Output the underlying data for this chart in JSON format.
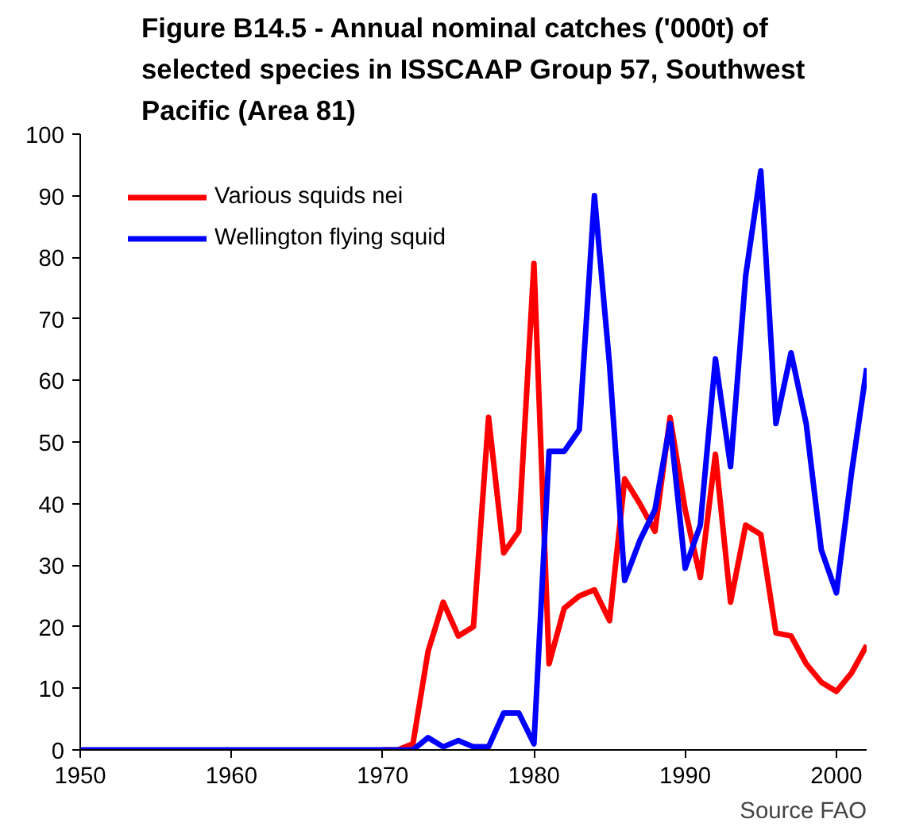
{
  "chart_data": {
    "type": "line",
    "title": "Figure B14.5 - Annual nominal catches ('000t) of selected species in ISSCAAP Group 57, Southwest Pacific (Area 81)",
    "x": [
      1950,
      1951,
      1952,
      1953,
      1954,
      1955,
      1956,
      1957,
      1958,
      1959,
      1960,
      1961,
      1962,
      1963,
      1964,
      1965,
      1966,
      1967,
      1968,
      1969,
      1970,
      1971,
      1972,
      1973,
      1974,
      1975,
      1976,
      1977,
      1978,
      1979,
      1980,
      1981,
      1982,
      1983,
      1984,
      1985,
      1986,
      1987,
      1988,
      1989,
      1990,
      1991,
      1992,
      1993,
      1994,
      1995,
      1996,
      1997,
      1998,
      1999,
      2000,
      2001,
      2002
    ],
    "series": [
      {
        "name": "Various squids nei",
        "color": "#ff0000",
        "values": [
          null,
          null,
          null,
          null,
          null,
          null,
          null,
          null,
          null,
          null,
          null,
          null,
          null,
          null,
          null,
          null,
          null,
          null,
          null,
          null,
          0,
          0,
          1,
          16,
          24,
          18.5,
          20,
          54,
          32,
          35.5,
          79,
          14,
          23,
          25,
          26,
          21,
          44,
          40,
          35.5,
          54,
          39,
          28,
          48,
          24,
          36.5,
          35,
          19,
          18.5,
          14,
          11,
          9.5,
          12.5,
          17
        ]
      },
      {
        "name": "Wellington flying squid",
        "color": "#0000ff",
        "values": [
          0,
          0,
          0,
          0,
          0,
          0,
          0,
          0,
          0,
          0,
          0,
          0,
          0,
          0,
          0,
          0,
          0,
          0,
          0,
          0,
          0,
          0,
          0,
          2,
          0.5,
          1.5,
          0.5,
          0.5,
          6,
          6,
          1,
          48.5,
          48.5,
          52,
          90,
          62.5,
          27.5,
          34,
          39,
          53,
          29.5,
          36.5,
          63.5,
          46,
          77,
          94,
          53,
          64.5,
          53,
          32.5,
          25.5,
          45,
          62
        ]
      }
    ],
    "xlim": [
      1950,
      2002
    ],
    "xticks": [
      1950,
      1960,
      1970,
      1980,
      1990,
      2000
    ],
    "ylim": [
      0,
      100
    ],
    "yticks": [
      0,
      10,
      20,
      30,
      40,
      50,
      60,
      70,
      80,
      90,
      100
    ],
    "grid": false,
    "legend": "top left",
    "annotations": [
      "Source FAO"
    ]
  }
}
